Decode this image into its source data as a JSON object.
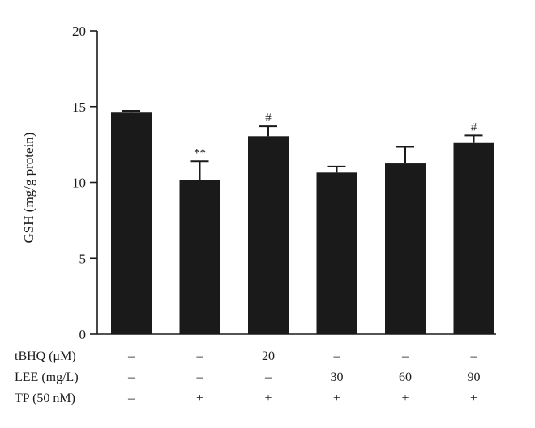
{
  "colors": {
    "bar": "#1a1a1a",
    "axis": "#1a1a1a",
    "background": "#ffffff"
  },
  "chart_data": {
    "type": "bar",
    "title": "",
    "ylabel": "GSH (mg/g protein)",
    "ylim": [
      0,
      20
    ],
    "yticks": [
      "0",
      "5",
      "10",
      "15",
      "20"
    ],
    "grid": false,
    "legend": "none",
    "values": [
      14.6,
      10.15,
      13.05,
      10.65,
      11.25,
      12.6
    ],
    "errors": [
      0.12,
      1.25,
      0.65,
      0.4,
      1.1,
      0.5
    ],
    "annotations": [
      "",
      "**",
      "#",
      "",
      "",
      "#"
    ],
    "conditions": [
      {
        "label": "tBHQ (μM)",
        "values": [
          "–",
          "–",
          "20",
          "–",
          "–",
          "–"
        ]
      },
      {
        "label": "LEE (mg/L)",
        "values": [
          "–",
          "–",
          "–",
          "30",
          "60",
          "90"
        ]
      },
      {
        "label": "TP (50 nM)",
        "values": [
          "–",
          "+",
          "+",
          "+",
          "+",
          "+"
        ]
      }
    ]
  }
}
